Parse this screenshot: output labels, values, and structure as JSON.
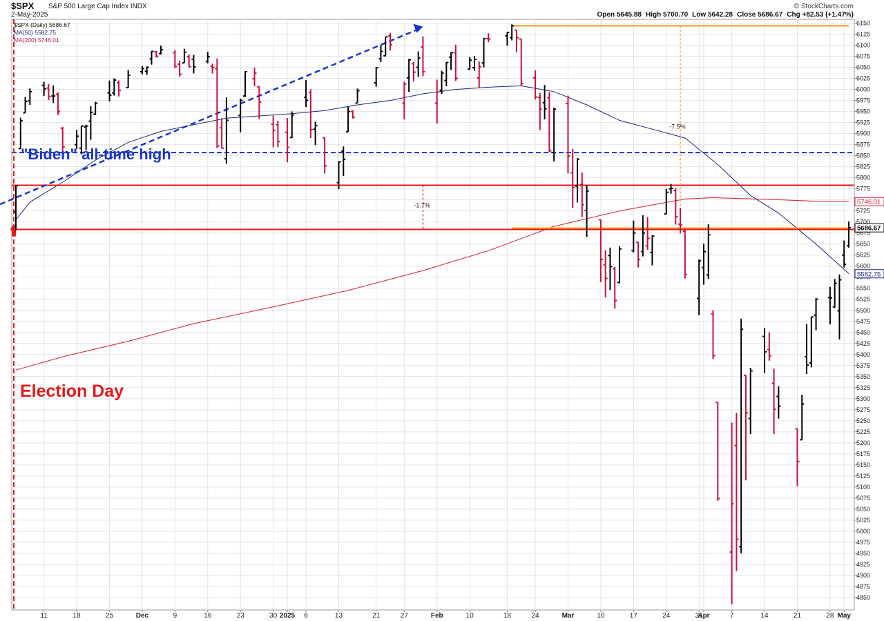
{
  "header": {
    "symbol": "$SPX",
    "name": "S&P 500 Large Cap Index",
    "exchange": "INDX",
    "date": "2-May-2025",
    "copyright": "© StockCharts.com",
    "open_label": "Open",
    "open": "5645.88",
    "high_label": "High",
    "high": "5700.70",
    "low_label": "Low",
    "low": "5642.28",
    "close_label": "Close",
    "close": "5686.67",
    "chg_label": "Chg",
    "chg": "+82.53 (+1.47%)"
  },
  "legend": {
    "price": "$SPX (Daily) 5686.67",
    "ma50": "MA(50) 5582.75",
    "ma200": "MA(200) 5746.01"
  },
  "annotations": {
    "biden": "\"Biden\" all-time high",
    "election": "Election Day",
    "pct_small": "-1.7%",
    "pct_big": "-7.5%"
  },
  "colors": {
    "up": "#000000",
    "down": "#c8103c",
    "ma50": "#1a237e",
    "ma200": "#d01c36",
    "red_line": "#e81212",
    "blue_dashed": "#1b35c6",
    "orange": "#f39c12"
  },
  "chart_data": {
    "type": "ohlc",
    "title": "$SPX S&P 500 Large Cap Index",
    "y_range": [
      4825,
      6160
    ],
    "x_range": [
      "2024-11-05",
      "2025-05-02"
    ],
    "y_ticks": [
      6150,
      6125,
      6100,
      6075,
      6050,
      6025,
      6000,
      5975,
      5950,
      5925,
      5900,
      5875,
      5850,
      5825,
      5800,
      5775,
      5750,
      5725,
      5700,
      5675,
      5650,
      5625,
      5600,
      5575,
      5550,
      5525,
      5500,
      5475,
      5450,
      5425,
      5400,
      5375,
      5350,
      5325,
      5300,
      5275,
      5250,
      5225,
      5200,
      5175,
      5150,
      5125,
      5100,
      5075,
      5050,
      5025,
      5000,
      4975,
      4950,
      4925,
      4900,
      4875,
      4850
    ],
    "x_ticks": [
      {
        "label": "11",
        "date": "2024-11-11"
      },
      {
        "label": "18",
        "date": "2024-11-18"
      },
      {
        "label": "25",
        "date": "2024-11-25"
      },
      {
        "label": "Dec",
        "date": "2024-12-02",
        "bold": true
      },
      {
        "label": "9",
        "date": "2024-12-09"
      },
      {
        "label": "16",
        "date": "2024-12-16"
      },
      {
        "label": "23",
        "date": "2024-12-23"
      },
      {
        "label": "30",
        "date": "2024-12-30"
      },
      {
        "label": "2025",
        "date": "2025-01-02",
        "bold": true
      },
      {
        "label": "6",
        "date": "2025-01-06"
      },
      {
        "label": "13",
        "date": "2025-01-13"
      },
      {
        "label": "21",
        "date": "2025-01-21"
      },
      {
        "label": "27",
        "date": "2025-01-27"
      },
      {
        "label": "Feb",
        "date": "2025-02-03",
        "bold": true
      },
      {
        "label": "10",
        "date": "2025-02-10"
      },
      {
        "label": "18",
        "date": "2025-02-18"
      },
      {
        "label": "24",
        "date": "2025-02-24"
      },
      {
        "label": "Mar",
        "date": "2025-03-03",
        "bold": true
      },
      {
        "label": "10",
        "date": "2025-03-10"
      },
      {
        "label": "17",
        "date": "2025-03-17"
      },
      {
        "label": "24",
        "date": "2025-03-24"
      },
      {
        "label": "31",
        "date": "2025-03-31"
      },
      {
        "label": "Apr",
        "date": "2025-04-01",
        "bold": true
      },
      {
        "label": "7",
        "date": "2025-04-07"
      },
      {
        "label": "14",
        "date": "2025-04-14"
      },
      {
        "label": "21",
        "date": "2025-04-21"
      },
      {
        "label": "28",
        "date": "2025-04-28"
      },
      {
        "label": "May",
        "date": "2025-05-01",
        "bold": true
      }
    ],
    "price_labels": [
      {
        "text": "5746.01",
        "value": 5746.01,
        "color": "#d01c36"
      },
      {
        "text": "5686.67",
        "value": 5686.67,
        "color": "#000000",
        "bold": true
      },
      {
        "text": "5582.75",
        "value": 5582.75,
        "color": "#1a237e"
      }
    ],
    "horizontal_lines": [
      {
        "name": "biden-ath",
        "value": 5857,
        "style": "dashed",
        "color": "#1b35c6"
      },
      {
        "name": "resistance-upper",
        "value": 5783,
        "style": "solid",
        "color": "#e81212"
      },
      {
        "name": "election-level",
        "value": 5683,
        "style": "solid",
        "color": "#e81212"
      },
      {
        "name": "orange-top",
        "value": 6144,
        "style": "solid",
        "color": "#f39c12",
        "from": "2025-02-19"
      },
      {
        "name": "orange-bottom",
        "value": 5686,
        "style": "solid",
        "color": "#f39c12",
        "from": "2025-02-19"
      }
    ],
    "ohlc": [
      [
        "2024-11-05",
        5723,
        5783,
        5680,
        5782
      ],
      [
        "2024-11-06",
        5866,
        5936,
        5866,
        5929
      ],
      [
        "2024-11-07",
        5947,
        5983,
        5947,
        5973
      ],
      [
        "2024-11-08",
        5974,
        6002,
        5965,
        5995
      ],
      [
        "2024-11-11",
        6009,
        6017,
        5985,
        6001
      ],
      [
        "2024-11-12",
        6003,
        6012,
        5976,
        5984
      ],
      [
        "2024-11-13",
        5985,
        6009,
        5969,
        5985
      ],
      [
        "2024-11-14",
        5989,
        5993,
        5942,
        5950
      ],
      [
        "2024-11-15",
        5912,
        5915,
        5853,
        5870
      ],
      [
        "2024-11-18",
        5875,
        5908,
        5865,
        5894
      ],
      [
        "2024-11-19",
        5867,
        5917,
        5853,
        5917
      ],
      [
        "2024-11-20",
        5915,
        5920,
        5862,
        5917
      ],
      [
        "2024-11-21",
        5928,
        5962,
        5886,
        5948
      ],
      [
        "2024-11-22",
        5944,
        5972,
        5942,
        5969
      ],
      [
        "2024-11-25",
        5992,
        6020,
        5973,
        5987
      ],
      [
        "2024-11-26",
        5992,
        6025,
        5986,
        6021
      ],
      [
        "2024-11-27",
        6015,
        6020,
        5984,
        5998
      ],
      [
        "2024-11-29",
        6004,
        6044,
        6003,
        6032
      ],
      [
        "2024-12-02",
        6040,
        6053,
        6034,
        6047
      ],
      [
        "2024-12-03",
        6041,
        6052,
        6033,
        6050
      ],
      [
        "2024-12-04",
        6069,
        6087,
        6056,
        6086
      ],
      [
        "2024-12-05",
        6085,
        6087,
        6072,
        6075
      ],
      [
        "2024-12-06",
        6081,
        6099,
        6079,
        6090
      ],
      [
        "2024-12-09",
        6083,
        6089,
        6048,
        6052
      ],
      [
        "2024-12-10",
        6057,
        6065,
        6029,
        6034
      ],
      [
        "2024-12-11",
        6060,
        6092,
        6060,
        6084
      ],
      [
        "2024-12-12",
        6074,
        6079,
        6051,
        6051
      ],
      [
        "2024-12-13",
        6068,
        6078,
        6036,
        6051
      ],
      [
        "2024-12-16",
        6063,
        6085,
        6059,
        6074
      ],
      [
        "2024-12-17",
        6052,
        6058,
        6036,
        6050
      ],
      [
        "2024-12-18",
        6047,
        6070,
        5867,
        5872
      ],
      [
        "2024-12-19",
        5913,
        5935,
        5866,
        5867
      ],
      [
        "2024-12-20",
        5843,
        5982,
        5832,
        5930
      ],
      [
        "2024-12-23",
        5941,
        5979,
        5903,
        5975
      ],
      [
        "2024-12-24",
        5985,
        6041,
        5983,
        6040
      ],
      [
        "2024-12-26",
        6024,
        6049,
        6007,
        6037
      ],
      [
        "2024-12-27",
        6006,
        6007,
        5933,
        5971
      ],
      [
        "2024-12-30",
        5921,
        5941,
        5869,
        5907
      ],
      [
        "2024-12-31",
        5920,
        5929,
        5869,
        5882
      ],
      [
        "2025-01-02",
        5903,
        5935,
        5835,
        5869
      ],
      [
        "2025-01-03",
        5891,
        5950,
        5890,
        5942
      ],
      [
        "2025-01-06",
        5982,
        6021,
        5960,
        5975
      ],
      [
        "2025-01-07",
        5993,
        6000,
        5890,
        5909
      ],
      [
        "2025-01-08",
        5910,
        5927,
        5874,
        5918
      ],
      [
        "2025-01-10",
        5890,
        5891,
        5810,
        5827
      ],
      [
        "2025-01-13",
        5789,
        5838,
        5774,
        5836
      ],
      [
        "2025-01-14",
        5860,
        5871,
        5804,
        5842
      ],
      [
        "2025-01-15",
        5904,
        5961,
        5904,
        5950
      ],
      [
        "2025-01-16",
        5950,
        5953,
        5934,
        5937
      ],
      [
        "2025-01-17",
        5969,
        6002,
        5969,
        5997
      ],
      [
        "2025-01-21",
        6015,
        6051,
        6006,
        6049
      ],
      [
        "2025-01-22",
        6069,
        6100,
        6062,
        6086
      ],
      [
        "2025-01-23",
        6076,
        6119,
        6075,
        6119
      ],
      [
        "2025-01-24",
        6121,
        6128,
        6088,
        6101
      ],
      [
        "2025-01-27",
        5969,
        6017,
        5932,
        6012
      ],
      [
        "2025-01-28",
        6026,
        6069,
        5994,
        6067
      ],
      [
        "2025-01-29",
        6058,
        6062,
        6018,
        6039
      ],
      [
        "2025-01-30",
        6050,
        6086,
        6028,
        6071
      ],
      [
        "2025-01-31",
        6096,
        6120,
        6030,
        6040
      ],
      [
        "2025-02-03",
        5969,
        6022,
        5923,
        5994
      ],
      [
        "2025-02-04",
        5998,
        6042,
        5990,
        6037
      ],
      [
        "2025-02-05",
        6020,
        6062,
        6007,
        6061
      ],
      [
        "2025-02-06",
        6073,
        6084,
        6044,
        6083
      ],
      [
        "2025-02-07",
        6083,
        6101,
        6019,
        6025
      ],
      [
        "2025-02-10",
        6046,
        6073,
        6045,
        6066
      ],
      [
        "2025-02-11",
        6049,
        6076,
        6042,
        6068
      ],
      [
        "2025-02-12",
        6026,
        6063,
        6003,
        6051
      ],
      [
        "2025-02-13",
        6060,
        6116,
        6050,
        6115
      ],
      [
        "2025-02-14",
        6115,
        6127,
        6107,
        6114
      ],
      [
        "2025-02-18",
        6121,
        6129,
        6099,
        6129
      ],
      [
        "2025-02-19",
        6117,
        6147,
        6111,
        6144
      ],
      [
        "2025-02-20",
        6134,
        6134,
        6084,
        6117
      ],
      [
        "2025-02-21",
        6114,
        6114,
        6008,
        6013
      ],
      [
        "2025-02-24",
        6026,
        6043,
        5977,
        5983
      ],
      [
        "2025-02-25",
        5982,
        5992,
        5908,
        5955
      ],
      [
        "2025-02-26",
        5970,
        6010,
        5932,
        5956
      ],
      [
        "2025-02-27",
        5981,
        5994,
        5858,
        5861
      ],
      [
        "2025-02-28",
        5857,
        5959,
        5837,
        5955
      ],
      [
        "2025-03-03",
        5968,
        5986,
        5810,
        5849
      ],
      [
        "2025-03-04",
        5811,
        5865,
        5732,
        5778
      ],
      [
        "2025-03-05",
        5781,
        5845,
        5744,
        5842
      ],
      [
        "2025-03-06",
        5785,
        5812,
        5711,
        5739
      ],
      [
        "2025-03-07",
        5726,
        5783,
        5666,
        5770
      ],
      [
        "2025-03-10",
        5705,
        5705,
        5564,
        5615
      ],
      [
        "2025-03-11",
        5603,
        5636,
        5529,
        5572
      ],
      [
        "2025-03-12",
        5624,
        5642,
        5546,
        5599
      ],
      [
        "2025-03-13",
        5594,
        5598,
        5504,
        5522
      ],
      [
        "2025-03-14",
        5563,
        5645,
        5561,
        5639
      ],
      [
        "2025-03-17",
        5635,
        5703,
        5631,
        5675
      ],
      [
        "2025-03-18",
        5654,
        5654,
        5597,
        5615
      ],
      [
        "2025-03-19",
        5633,
        5715,
        5622,
        5675
      ],
      [
        "2025-03-20",
        5646,
        5711,
        5637,
        5663
      ],
      [
        "2025-03-21",
        5631,
        5670,
        5602,
        5668
      ],
      [
        "2025-03-24",
        5718,
        5775,
        5718,
        5767
      ],
      [
        "2025-03-25",
        5775,
        5786,
        5764,
        5776
      ],
      [
        "2025-03-26",
        5771,
        5777,
        5694,
        5712
      ],
      [
        "2025-03-27",
        5695,
        5732,
        5674,
        5693
      ],
      [
        "2025-03-28",
        5679,
        5685,
        5572,
        5581
      ],
      [
        "2025-03-31",
        5527,
        5615,
        5489,
        5612
      ],
      [
        "2025-04-01",
        5597,
        5651,
        5558,
        5633
      ],
      [
        "2025-04-02",
        5580,
        5695,
        5571,
        5671
      ],
      [
        "2025-04-03",
        5492,
        5500,
        5390,
        5397
      ],
      [
        "2025-04-04",
        5292,
        5292,
        5069,
        5074
      ],
      [
        "2025-04-07",
        4953,
        5246,
        4835,
        5062
      ],
      [
        "2025-04-08",
        5194,
        5268,
        4910,
        4982
      ],
      [
        "2025-04-09",
        4965,
        5481,
        4950,
        5457
      ],
      [
        "2025-04-10",
        5353,
        5353,
        5115,
        5268
      ],
      [
        "2025-04-11",
        5255,
        5370,
        5220,
        5363
      ],
      [
        "2025-04-14",
        5441,
        5460,
        5358,
        5406
      ],
      [
        "2025-04-15",
        5411,
        5450,
        5386,
        5397
      ],
      [
        "2025-04-16",
        5335,
        5368,
        5220,
        5276
      ],
      [
        "2025-04-17",
        5305,
        5328,
        5255,
        5283
      ],
      [
        "2025-04-21",
        5232,
        5232,
        5102,
        5158
      ],
      [
        "2025-04-22",
        5207,
        5309,
        5207,
        5288
      ],
      [
        "2025-04-23",
        5395,
        5469,
        5356,
        5376
      ],
      [
        "2025-04-24",
        5381,
        5485,
        5371,
        5485
      ],
      [
        "2025-04-25",
        5489,
        5528,
        5455,
        5525
      ],
      [
        "2025-04-28",
        5529,
        5553,
        5468,
        5528
      ],
      [
        "2025-04-29",
        5508,
        5571,
        5505,
        5561
      ],
      [
        "2025-04-30",
        5499,
        5581,
        5434,
        5569
      ],
      [
        "2025-05-01",
        5625,
        5658,
        5597,
        5604
      ],
      [
        "2025-05-02",
        5646,
        5701,
        5642,
        5687
      ]
    ],
    "ma50": [
      [
        "2024-11-05",
        5705
      ],
      [
        "2024-11-08",
        5745
      ],
      [
        "2024-11-15",
        5790
      ],
      [
        "2024-11-22",
        5840
      ],
      [
        "2024-11-29",
        5880
      ],
      [
        "2024-12-06",
        5905
      ],
      [
        "2024-12-13",
        5920
      ],
      [
        "2024-12-20",
        5935
      ],
      [
        "2024-12-27",
        5940
      ],
      [
        "2025-01-03",
        5945
      ],
      [
        "2025-01-10",
        5952
      ],
      [
        "2025-01-17",
        5965
      ],
      [
        "2025-01-24",
        5975
      ],
      [
        "2025-01-31",
        5990
      ],
      [
        "2025-02-07",
        6000
      ],
      [
        "2025-02-14",
        6005
      ],
      [
        "2025-02-21",
        6008
      ],
      [
        "2025-02-28",
        5995
      ],
      [
        "2025-03-07",
        5965
      ],
      [
        "2025-03-14",
        5930
      ],
      [
        "2025-03-21",
        5910
      ],
      [
        "2025-03-28",
        5890
      ],
      [
        "2025-04-04",
        5830
      ],
      [
        "2025-04-11",
        5760
      ],
      [
        "2025-04-17",
        5720
      ],
      [
        "2025-04-25",
        5650
      ],
      [
        "2025-05-02",
        5583
      ]
    ],
    "ma200": [
      [
        "2024-11-05",
        5365
      ],
      [
        "2024-11-15",
        5395
      ],
      [
        "2024-11-29",
        5430
      ],
      [
        "2024-12-13",
        5470
      ],
      [
        "2024-12-31",
        5510
      ],
      [
        "2025-01-15",
        5545
      ],
      [
        "2025-01-31",
        5590
      ],
      [
        "2025-02-14",
        5635
      ],
      [
        "2025-02-28",
        5690
      ],
      [
        "2025-03-14",
        5725
      ],
      [
        "2025-03-28",
        5752
      ],
      [
        "2025-04-03",
        5755
      ],
      [
        "2025-04-15",
        5751
      ],
      [
        "2025-04-25",
        5747
      ],
      [
        "2025-05-02",
        5746
      ]
    ]
  }
}
